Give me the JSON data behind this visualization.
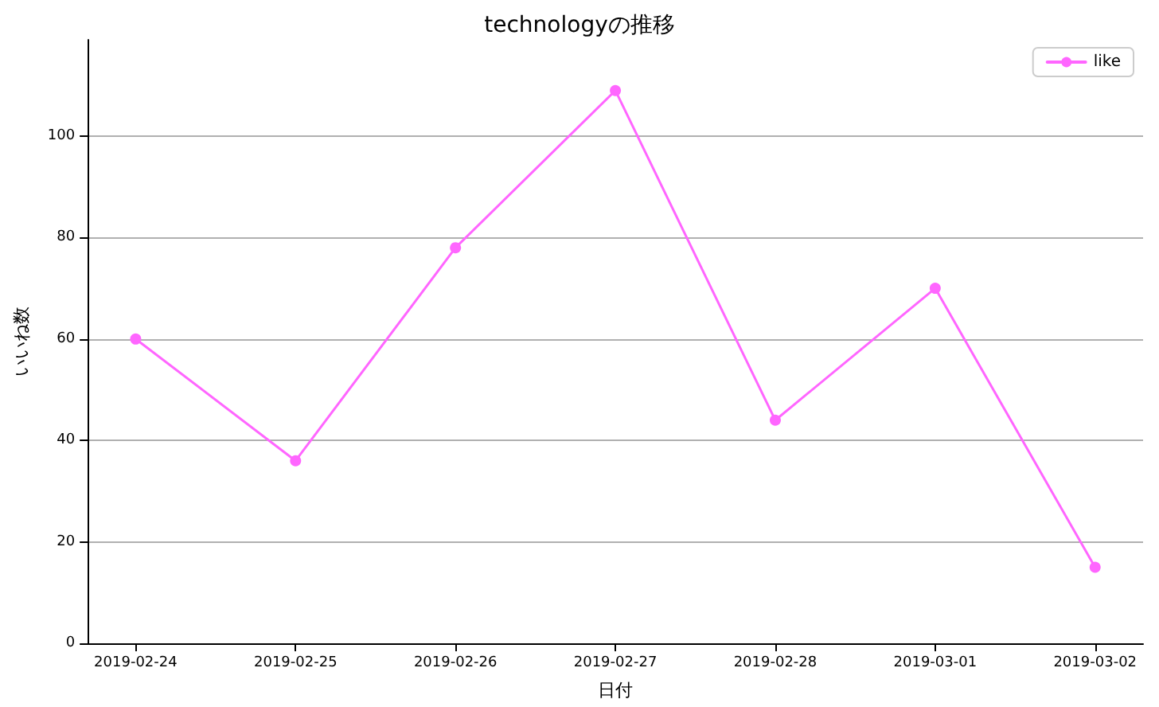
{
  "chart_data": {
    "type": "line",
    "title": "technologyの推移",
    "xlabel": "日付",
    "ylabel": "いいね数",
    "x": [
      "2019-02-24",
      "2019-02-25",
      "2019-02-26",
      "2019-02-27",
      "2019-02-28",
      "2019-03-01",
      "2019-03-02"
    ],
    "series": [
      {
        "name": "like",
        "color": "#ff66ff",
        "values": [
          60,
          36,
          78,
          109,
          44,
          70,
          15
        ]
      }
    ],
    "xlim": [
      "2019-02-23T16:48",
      "2019-03-02T07:12"
    ],
    "xticks": [
      "2019-02-24",
      "2019-02-25",
      "2019-02-26",
      "2019-02-27",
      "2019-02-28",
      "2019-03-01",
      "2019-03-02"
    ],
    "ylim": [
      0,
      119
    ],
    "yticks": [
      0,
      20,
      40,
      60,
      80,
      100
    ],
    "grid": "y",
    "legend": "top right",
    "marker": "circle",
    "line_style": "solid"
  }
}
